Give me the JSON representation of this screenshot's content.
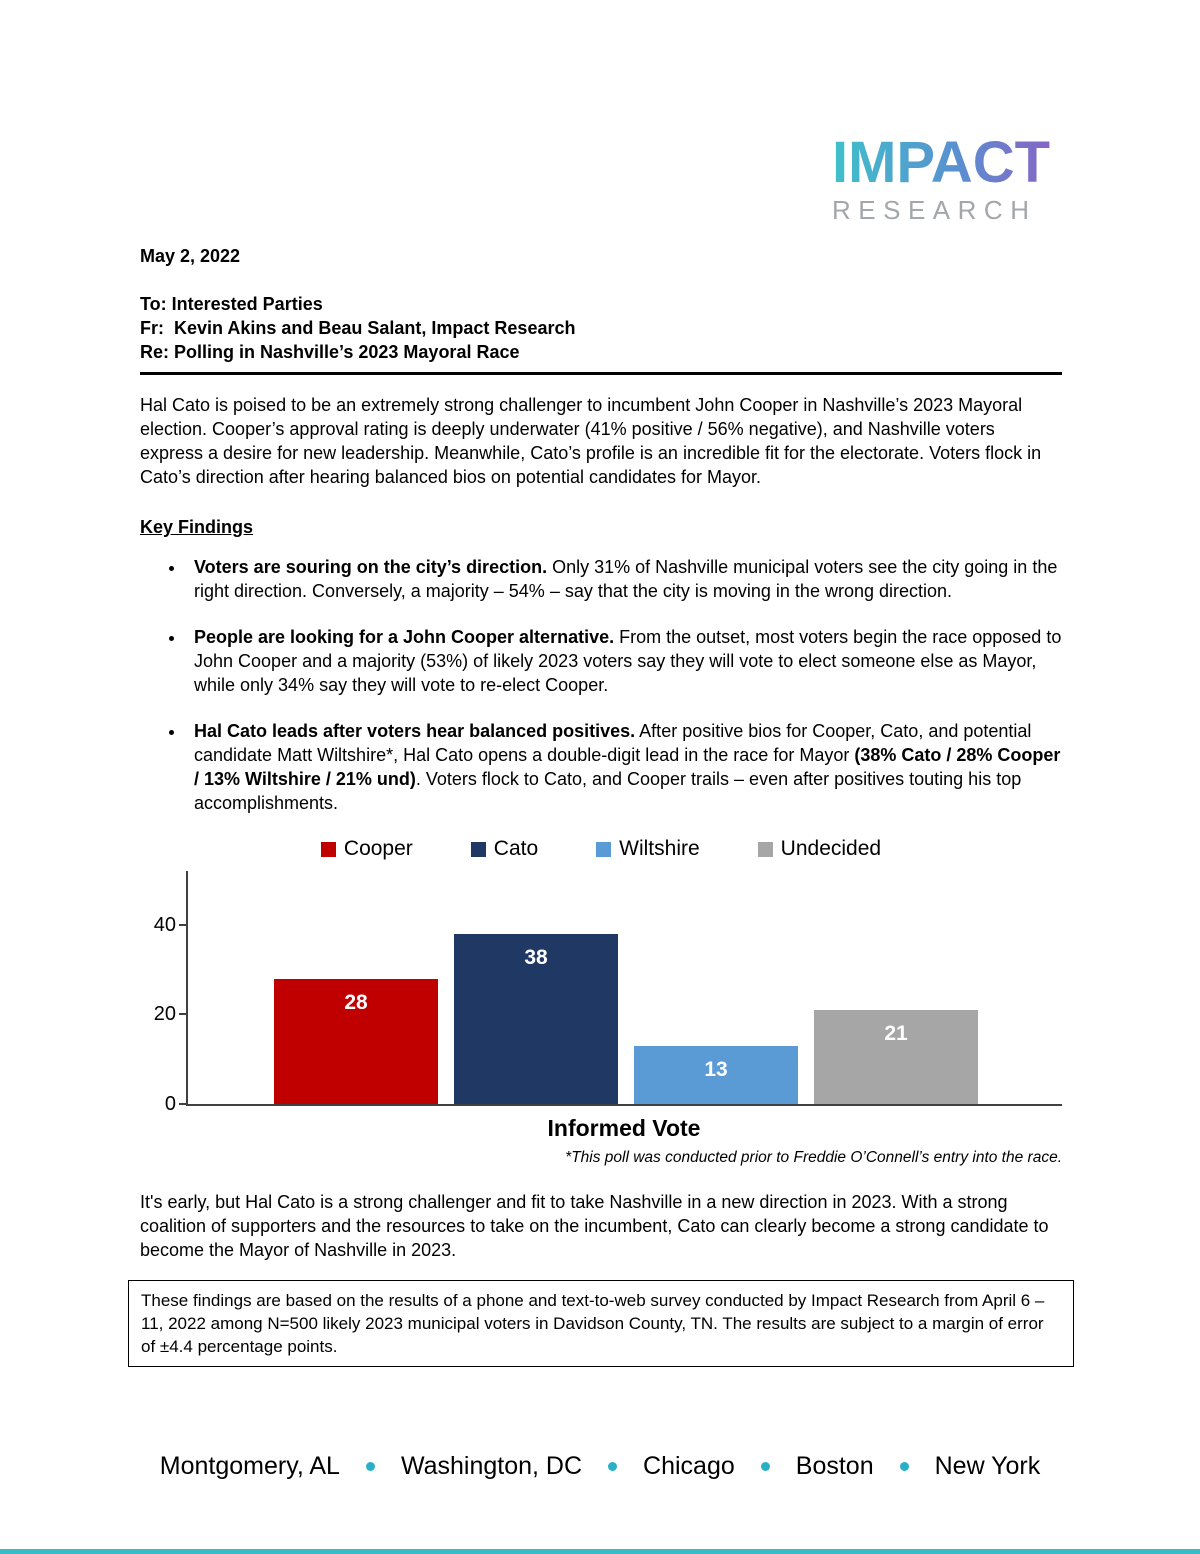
{
  "logo": {
    "primary": "IMPACT",
    "secondary": "RESEARCH",
    "gradient_start": "#3fc0ca",
    "gradient_end": "#8d5fc4",
    "secondary_color": "#a3a7ab"
  },
  "memo": {
    "date": "May 2, 2022",
    "to": "To: Interested Parties",
    "fr": "Fr:  Kevin Akins and Beau Salant, Impact Research",
    "re": "Re: Polling in Nashville’s 2023 Mayoral Race",
    "intro": "Hal Cato is poised to be an extremely strong challenger to incumbent John Cooper in Nashville’s 2023 Mayoral election. Cooper’s approval rating is deeply underwater (41% positive / 56% negative), and Nashville voters express a desire for new leadership. Meanwhile, Cato’s profile is an incredible fit for the electorate. Voters flock in Cato’s direction after hearing balanced bios on potential candidates for Mayor.",
    "key_findings_title": "Key Findings",
    "bullets": [
      {
        "segments": [
          {
            "bold": true,
            "text": "Voters are souring on the city’s direction."
          },
          {
            "bold": false,
            "text": " Only 31% of Nashville municipal voters see the city going in the right direction. Conversely, a majority – 54% – say that the city is moving in the wrong direction."
          }
        ]
      },
      {
        "segments": [
          {
            "bold": true,
            "text": "People are looking for a John Cooper alternative."
          },
          {
            "bold": false,
            "text": " From the outset, most voters begin the race opposed to John Cooper and a majority (53%) of likely 2023 voters say they will vote to elect someone else as Mayor, while only 34% say they will vote to re-elect Cooper."
          }
        ]
      },
      {
        "segments": [
          {
            "bold": true,
            "text": "Hal Cato leads after voters hear balanced positives."
          },
          {
            "bold": false,
            "text": " After positive bios for Cooper, Cato, and potential candidate Matt Wiltshire*, Hal Cato opens a double-digit lead in the race for Mayor "
          },
          {
            "bold": true,
            "text": "(38% Cato / 28% Cooper / 13% Wiltshire / 21% und)"
          },
          {
            "bold": false,
            "text": ". Voters flock to Cato, and Cooper trails – even after positives touting his top accomplishments."
          }
        ]
      }
    ],
    "closing": "It's early, but Hal Cato is a strong challenger and fit to take Nashville in a new direction in 2023. With a strong coalition of supporters and the resources to take on the incumbent, Cato can clearly become a strong candidate to become the Mayor of Nashville in 2023.",
    "methodology": "These findings are based on the results of a phone and text-to-web survey conducted by Impact Research from April 6 – 11, 2022 among N=500 likely 2023 municipal voters in Davidson County, TN. The results are subject to a margin of error of ±4.4 percentage points."
  },
  "chart_data": {
    "type": "bar",
    "categories": [
      "Cooper",
      "Cato",
      "Wiltshire",
      "Undecided"
    ],
    "values": [
      28,
      38,
      13,
      21
    ],
    "colors": [
      "#c00000",
      "#1f3864",
      "#5b9bd5",
      "#a6a6a6"
    ],
    "title": "",
    "xlabel": "Informed Vote",
    "ylabel": "",
    "yticks": [
      0,
      20,
      40
    ],
    "ylim": [
      0,
      52
    ],
    "legend_position": "top",
    "value_labels_color": "#ffffff",
    "footnote": "*This poll was conducted prior to Freddie O’Connell’s entry into the race."
  },
  "footer": {
    "cities": [
      "Montgomery, AL",
      "Washington, DC",
      "Chicago",
      "Boston",
      "New York"
    ],
    "dot_color": "#29b0c8",
    "accent_bar_color": "#35bcc6"
  }
}
